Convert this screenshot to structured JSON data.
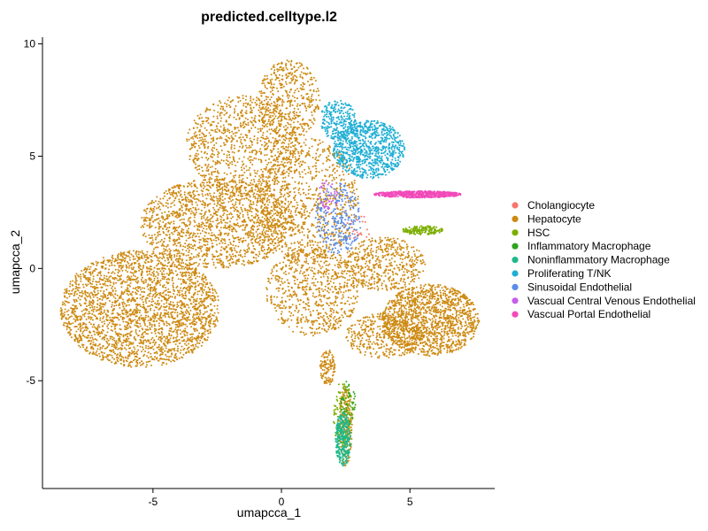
{
  "chart_data": {
    "type": "scatter",
    "title": "predicted.celltype.l2",
    "xlabel": "umapcca_1",
    "ylabel": "umapcca_2",
    "xlim": [
      -9.3,
      8.3
    ],
    "ylim": [
      -9.8,
      10.3
    ],
    "xticks": [
      -5,
      0,
      5
    ],
    "yticks": [
      -5,
      0,
      5,
      10
    ],
    "grid": false,
    "legend_position": "right",
    "series": [
      {
        "name": "Cholangiocyte",
        "color": "#F8766D",
        "regions": [
          {
            "cx": 3.0,
            "cy": 1.8,
            "rx": 0.5,
            "ry": 0.6,
            "n": 25
          }
        ]
      },
      {
        "name": "Hepatocyte",
        "color": "#CD8A12",
        "regions": [
          {
            "cx": -5.5,
            "cy": -1.8,
            "rx": 3.1,
            "ry": 2.6,
            "n": 2600
          },
          {
            "cx": -2.5,
            "cy": 2.0,
            "rx": 3.0,
            "ry": 2.0,
            "n": 1600
          },
          {
            "cx": -1.5,
            "cy": 5.5,
            "rx": 2.2,
            "ry": 2.2,
            "n": 900
          },
          {
            "cx": 0.3,
            "cy": 7.5,
            "rx": 1.2,
            "ry": 1.8,
            "n": 450
          },
          {
            "cx": 1.0,
            "cy": 3.0,
            "rx": 2.0,
            "ry": 2.8,
            "n": 900
          },
          {
            "cx": 1.2,
            "cy": -1.0,
            "rx": 1.8,
            "ry": 2.0,
            "n": 700
          },
          {
            "cx": 5.8,
            "cy": -2.3,
            "rx": 1.9,
            "ry": 1.6,
            "n": 1400
          },
          {
            "cx": 4.0,
            "cy": 0.2,
            "rx": 1.6,
            "ry": 1.2,
            "n": 500
          },
          {
            "cx": 4.0,
            "cy": -3.0,
            "rx": 1.5,
            "ry": 1.0,
            "n": 400
          },
          {
            "cx": 2.5,
            "cy": -7.0,
            "rx": 0.25,
            "ry": 1.8,
            "n": 220
          },
          {
            "cx": 1.8,
            "cy": -4.4,
            "rx": 0.3,
            "ry": 0.8,
            "n": 120
          }
        ]
      },
      {
        "name": "HSC",
        "color": "#7CAE00",
        "regions": [
          {
            "cx": 5.5,
            "cy": 1.7,
            "rx": 0.8,
            "ry": 0.2,
            "n": 160
          },
          {
            "cx": 2.4,
            "cy": -6.5,
            "rx": 0.4,
            "ry": 1.5,
            "n": 120
          }
        ]
      },
      {
        "name": "Inflammatory Macrophage",
        "color": "#2EA41F",
        "regions": [
          {
            "cx": 2.6,
            "cy": -6.0,
            "rx": 0.3,
            "ry": 1.0,
            "n": 40
          }
        ]
      },
      {
        "name": "Noninflammatory Macrophage",
        "color": "#1FB88A",
        "regions": [
          {
            "cx": 2.4,
            "cy": -7.6,
            "rx": 0.3,
            "ry": 1.2,
            "n": 320
          }
        ]
      },
      {
        "name": "Proliferating T/NK",
        "color": "#1FAED4",
        "regions": [
          {
            "cx": 3.4,
            "cy": 5.3,
            "rx": 1.4,
            "ry": 1.3,
            "n": 900
          },
          {
            "cx": 2.2,
            "cy": 6.6,
            "rx": 0.7,
            "ry": 0.9,
            "n": 250
          }
        ]
      },
      {
        "name": "Sinusoidal Endothelial",
        "color": "#5A8CE8",
        "regions": [
          {
            "cx": 2.2,
            "cy": 2.2,
            "rx": 0.9,
            "ry": 1.6,
            "n": 260
          }
        ]
      },
      {
        "name": "Vascual Central Venous Endothelial",
        "color": "#C75EEB",
        "regions": [
          {
            "cx": 1.8,
            "cy": 3.2,
            "rx": 0.4,
            "ry": 0.7,
            "n": 40
          }
        ]
      },
      {
        "name": "Vascual Portal Endothelial",
        "color": "#F24ABA",
        "regions": [
          {
            "cx": 5.3,
            "cy": 3.3,
            "rx": 1.7,
            "ry": 0.15,
            "n": 600
          }
        ]
      }
    ]
  }
}
